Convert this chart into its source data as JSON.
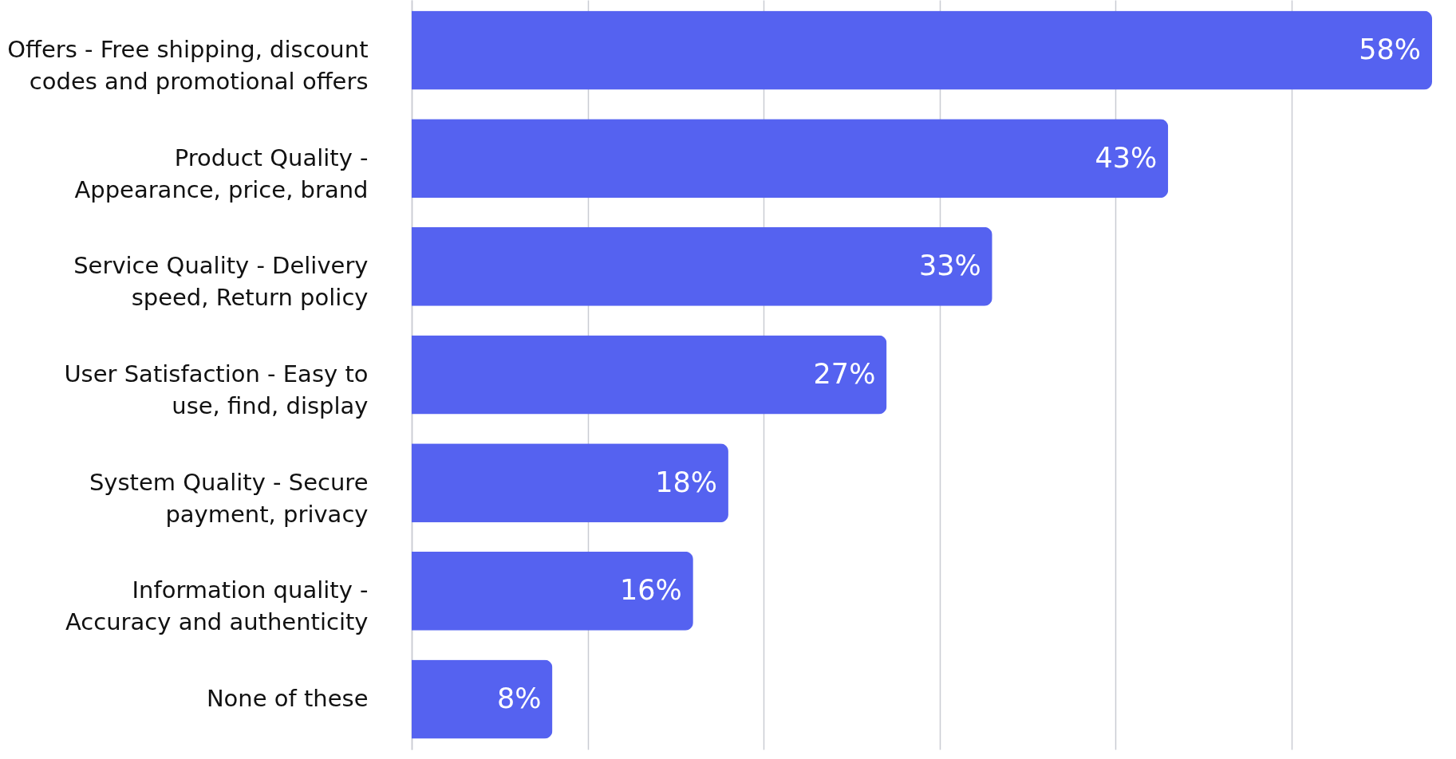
{
  "chart_data": {
    "type": "bar",
    "orientation": "horizontal",
    "categories": [
      "Offers - Free shipping, discount\ncodes and promotional offers",
      "Product Quality -\nAppearance, price, brand",
      "Service Quality - Delivery\nspeed, Return policy",
      "User Satisfaction - Easy to\nuse, find, display",
      "System Quality - Secure\npayment, privacy",
      "Information quality -\nAccuracy and authenticity",
      "None of these"
    ],
    "values": [
      58,
      43,
      33,
      27,
      18,
      16,
      8
    ],
    "value_labels": [
      "58%",
      "43%",
      "33%",
      "27%",
      "18%",
      "16%",
      "8%"
    ],
    "color": "#5562f0",
    "xlim": [
      0,
      58
    ],
    "xticks": [
      {
        "value": 0,
        "label": null
      },
      {
        "value": 10,
        "label": null
      },
      {
        "value": 20,
        "label": null
      },
      {
        "value": 30,
        "label": null
      },
      {
        "value": 40,
        "label": null
      },
      {
        "value": 50,
        "label": null
      }
    ],
    "grid": "x"
  }
}
